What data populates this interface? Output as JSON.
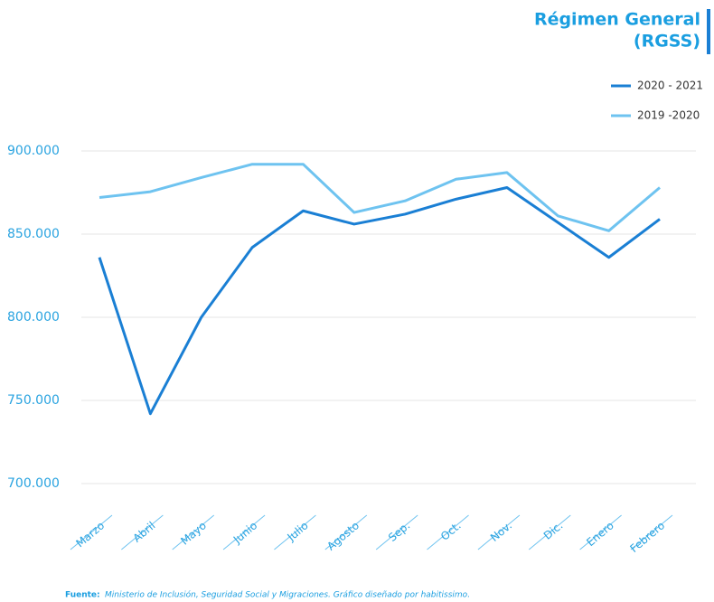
{
  "chart_data": {
    "type": "line",
    "title": [
      "Régimen General",
      "(RGSS)"
    ],
    "categories": [
      "Marzo",
      "Abril",
      "Mayo",
      "Junio",
      "Julio",
      "Agosto",
      "Sep.",
      "Oct.",
      "Nov.",
      "Dic.",
      "Enero",
      "Febrero"
    ],
    "series": [
      {
        "name": "2020 - 2021",
        "color": "#1a7fd4",
        "values": [
          836000,
          742000,
          800000,
          842000,
          864000,
          856000,
          862000,
          871000,
          878000,
          857000,
          836000,
          859000
        ]
      },
      {
        "name": "2019 -2020",
        "color": "#6ec3f0",
        "values": [
          872000,
          875500,
          884000,
          892000,
          892000,
          863000,
          870000,
          883000,
          887000,
          861000,
          852000,
          878000
        ]
      }
    ],
    "ylim": [
      700000,
      900000
    ],
    "yticks": [
      {
        "value": 700000,
        "label": "700.000"
      },
      {
        "value": 750000,
        "label": "750.000"
      },
      {
        "value": 800000,
        "label": "800.000"
      },
      {
        "value": 850000,
        "label": "850.000"
      },
      {
        "value": 900000,
        "label": "900.000"
      }
    ],
    "grid": true,
    "legend": "top-right",
    "source_label": "Fuente:",
    "source": "Ministerio de Inclusión, Seguridad Social y Migraciones. Gráfico diseñado por habitissimo."
  }
}
